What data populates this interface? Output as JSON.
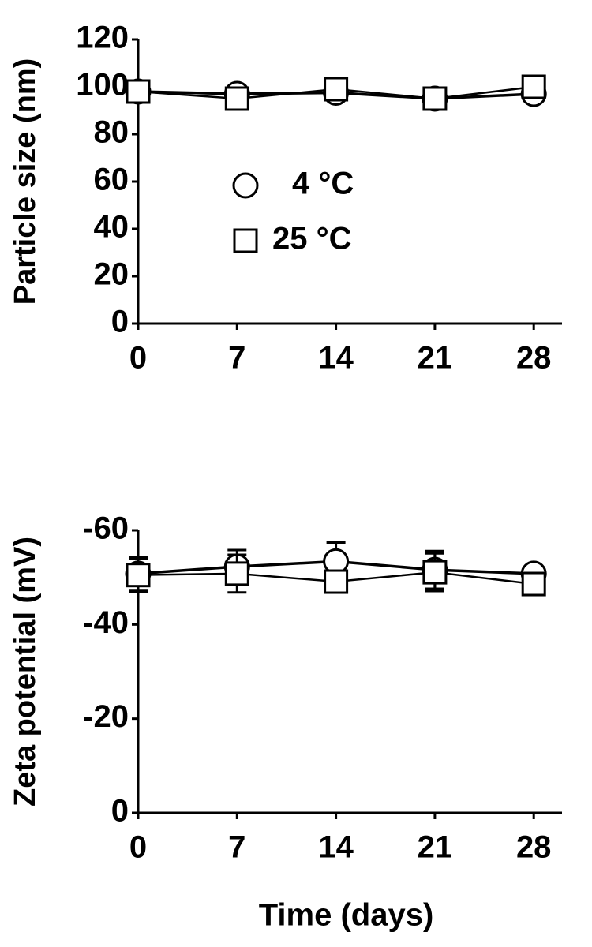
{
  "chart_data": [
    {
      "type": "line",
      "ylabel": "Particle size (nm)",
      "x": [
        0,
        7,
        14,
        21,
        28
      ],
      "xlim": [
        0,
        30
      ],
      "xticks": [
        0,
        7,
        14,
        21,
        28
      ],
      "ylim": [
        0,
        120
      ],
      "yticks": [
        0,
        20,
        40,
        60,
        80,
        100,
        120
      ],
      "series": [
        {
          "name": "4 °C",
          "marker": "circle",
          "color": "#000000",
          "values": [
            98,
            97,
            97.5,
            95,
            97
          ]
        },
        {
          "name": "25 °C",
          "marker": "square",
          "color": "#000000",
          "values": [
            98,
            95,
            99,
            95,
            100
          ]
        }
      ]
    },
    {
      "type": "line",
      "ylabel": "Zeta potential (mV)",
      "xlabel": "Time (days)",
      "x": [
        0,
        7,
        14,
        21,
        28
      ],
      "xlim": [
        0,
        30
      ],
      "xticks": [
        0,
        7,
        14,
        21,
        28
      ],
      "ylim": [
        0,
        -60
      ],
      "yticks": [
        0,
        -20,
        -40,
        -60
      ],
      "series": [
        {
          "name": "4 °C",
          "marker": "circle",
          "color": "#000000",
          "values": [
            -50.8,
            -52.3,
            -53.4,
            -51.6,
            -50.8
          ],
          "errors": [
            3.5,
            3.5,
            4,
            4,
            1
          ]
        },
        {
          "name": "25 °C",
          "marker": "square",
          "color": "#000000",
          "values": [
            -50.5,
            -50.8,
            -49.1,
            -51.1,
            -48.6
          ],
          "errors": [
            3.5,
            4,
            1,
            4,
            1
          ]
        }
      ]
    }
  ]
}
